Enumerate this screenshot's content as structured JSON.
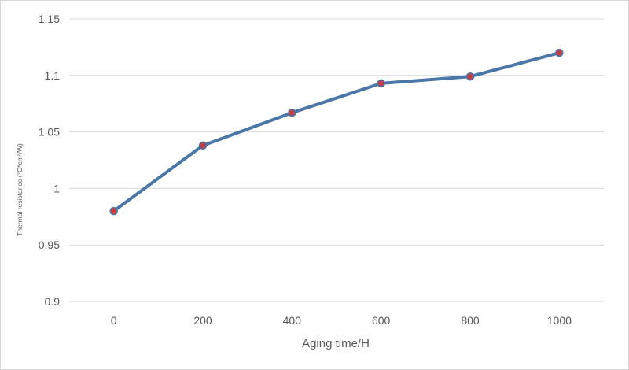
{
  "chart_data": {
    "type": "line",
    "title": "",
    "xlabel": "Aging time/H",
    "ylabel": "Thermal resistance (°C*cm²/W)",
    "categories": [
      "0",
      "200",
      "400",
      "600",
      "800",
      "1000"
    ],
    "series": [
      {
        "values": [
          0.98,
          1.038,
          1.067,
          1.093,
          1.099,
          1.12
        ],
        "line_color": "#4a76a8",
        "marker_color": "#c0404a"
      }
    ],
    "ylim": [
      0.9,
      1.15
    ],
    "yticks": [
      "0.9",
      "0.95",
      "1",
      "1.05",
      "1.1",
      "1.15"
    ],
    "grid": true,
    "legend": "none"
  }
}
